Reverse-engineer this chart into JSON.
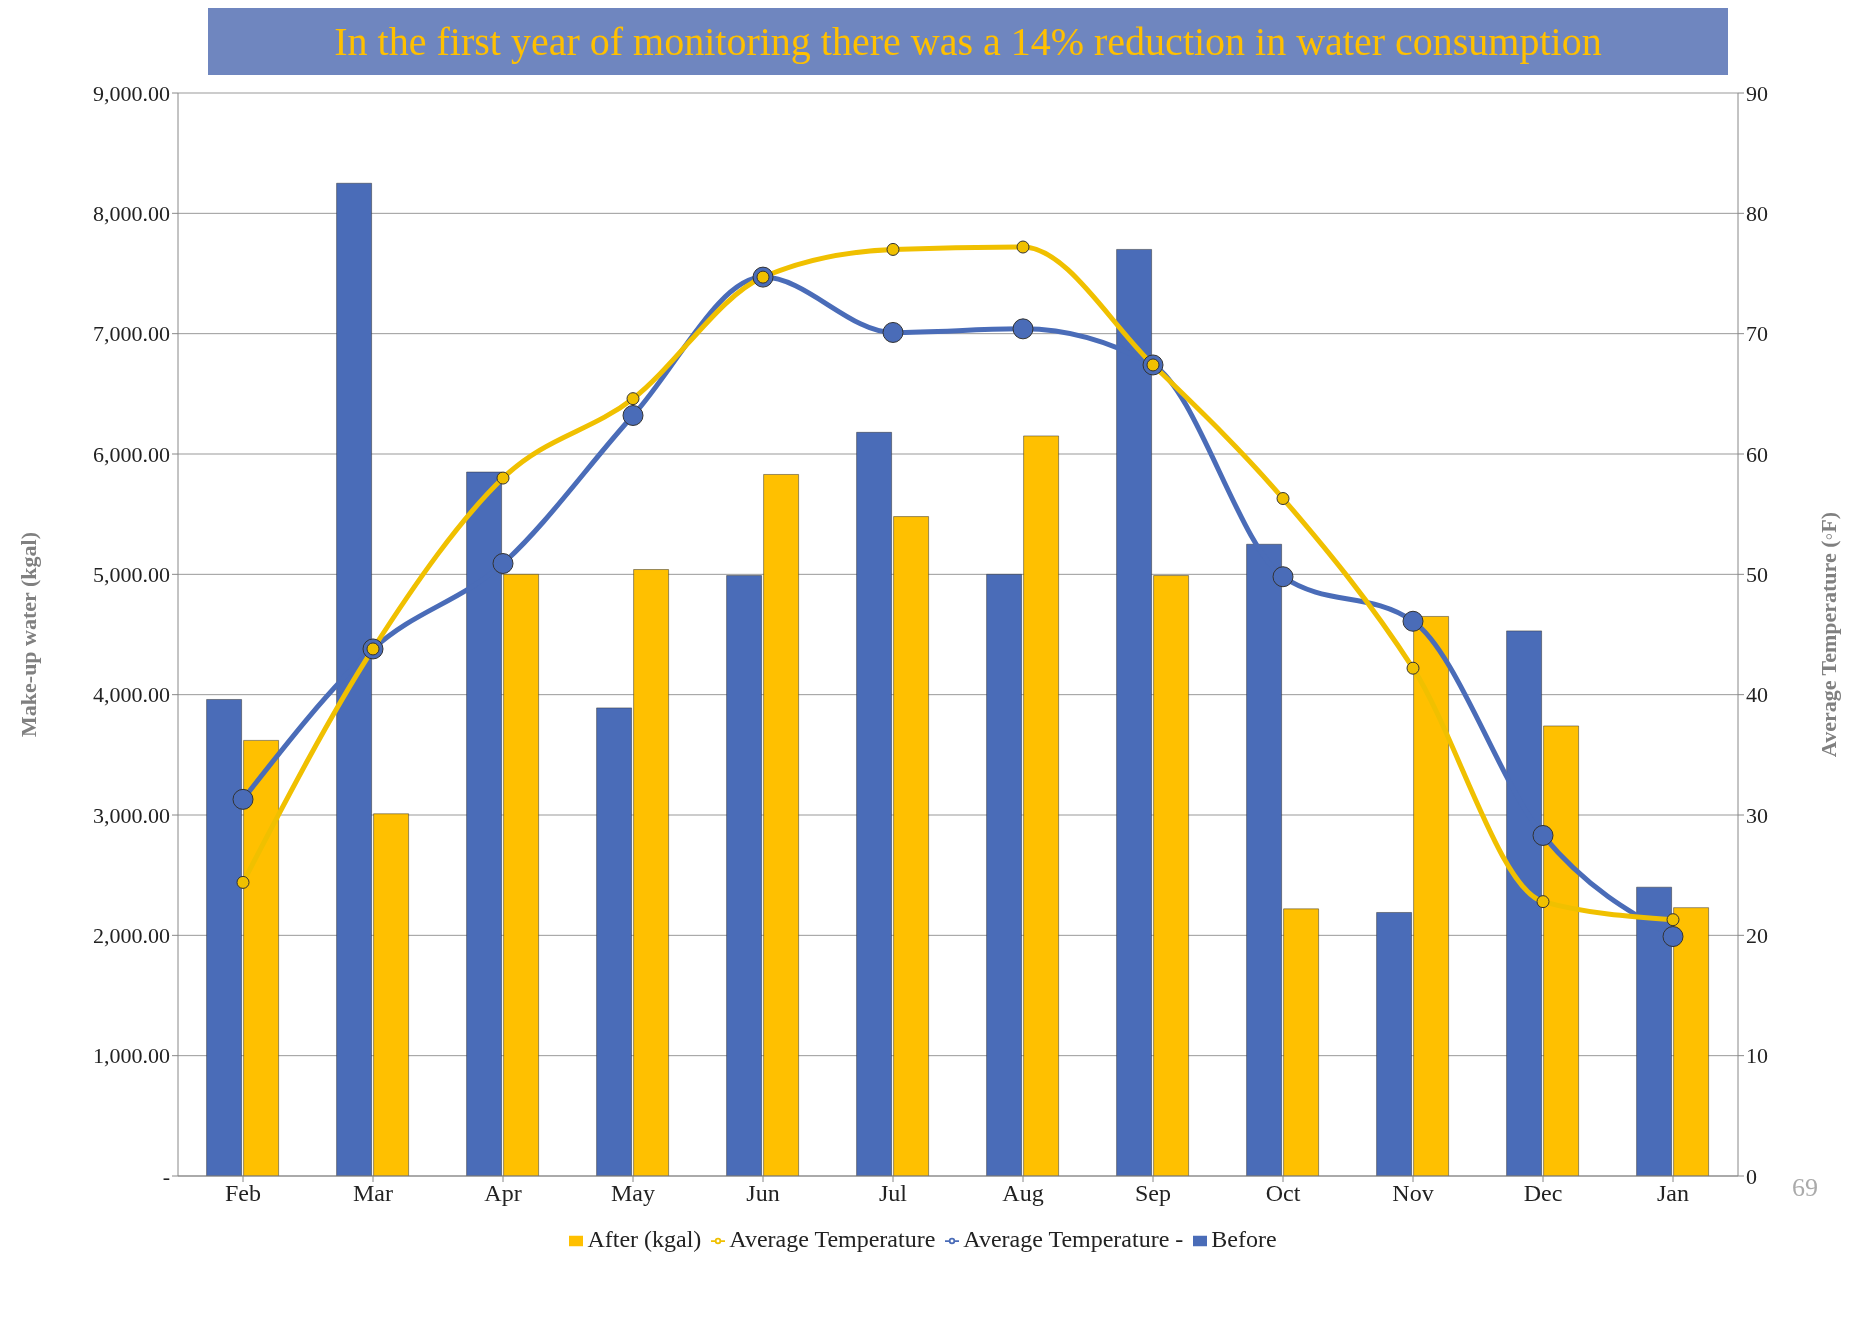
{
  "chart_data": {
    "type": "bar",
    "ylabel": "Make-up water (kgal)",
    "y2label": "Average Temperature (◦F)",
    "categories": [
      "Feb",
      "Mar",
      "Apr",
      "May",
      "Jun",
      "Jul",
      "Aug",
      "Sep",
      "Oct",
      "Nov",
      "Dec",
      "Jan"
    ],
    "series": [
      {
        "name": "Before",
        "color": "#4a6cb8",
        "values": [
          3960,
          8250,
          5850,
          3890,
          4990,
          6180,
          5000,
          7700,
          5250,
          2190,
          4530,
          2400
        ]
      },
      {
        "name": "After (kgal)",
        "color": "#ffc000",
        "values": [
          3620,
          3010,
          5000,
          5040,
          5830,
          5480,
          6150,
          4990,
          2220,
          4650,
          3740,
          2230
        ]
      },
      {
        "name": "Average Temperature -",
        "type": "line",
        "axis": "y2",
        "color": "#4a6cb8",
        "marker": "circle",
        "values": [
          31.3,
          43.8,
          50.9,
          63.2,
          74.7,
          70.1,
          70.4,
          67.4,
          49.8,
          46.1,
          28.3,
          19.9
        ]
      },
      {
        "name": "Average Temperature",
        "type": "line",
        "axis": "y2",
        "color": "#f0c000",
        "marker": "circle",
        "values": [
          24.4,
          43.8,
          58,
          64.6,
          74.7,
          77.0,
          77.2,
          67.4,
          56.3,
          42.2,
          22.8,
          21.3
        ]
      }
    ],
    "ylim": [
      0,
      9000
    ],
    "yticks": [
      {
        "value": 0,
        "label": "-"
      },
      {
        "value": 1000,
        "label": "1,000.00"
      },
      {
        "value": 2000,
        "label": "2,000.00"
      },
      {
        "value": 3000,
        "label": "3,000.00"
      },
      {
        "value": 4000,
        "label": "4,000.00"
      },
      {
        "value": 5000,
        "label": "5,000.00"
      },
      {
        "value": 6000,
        "label": "6,000.00"
      },
      {
        "value": 7000,
        "label": "7,000.00"
      },
      {
        "value": 8000,
        "label": "8,000.00"
      },
      {
        "value": 9000,
        "label": "9,000.00"
      }
    ],
    "y2lim": [
      0,
      90
    ],
    "y2ticks": [
      0,
      10,
      20,
      30,
      40,
      50,
      60,
      70,
      80,
      90
    ],
    "grid": "y",
    "legend": "bottom",
    "annotations": [
      "In the first year of monitoring there was a 14% reduction in water consumption",
      "69"
    ]
  }
}
